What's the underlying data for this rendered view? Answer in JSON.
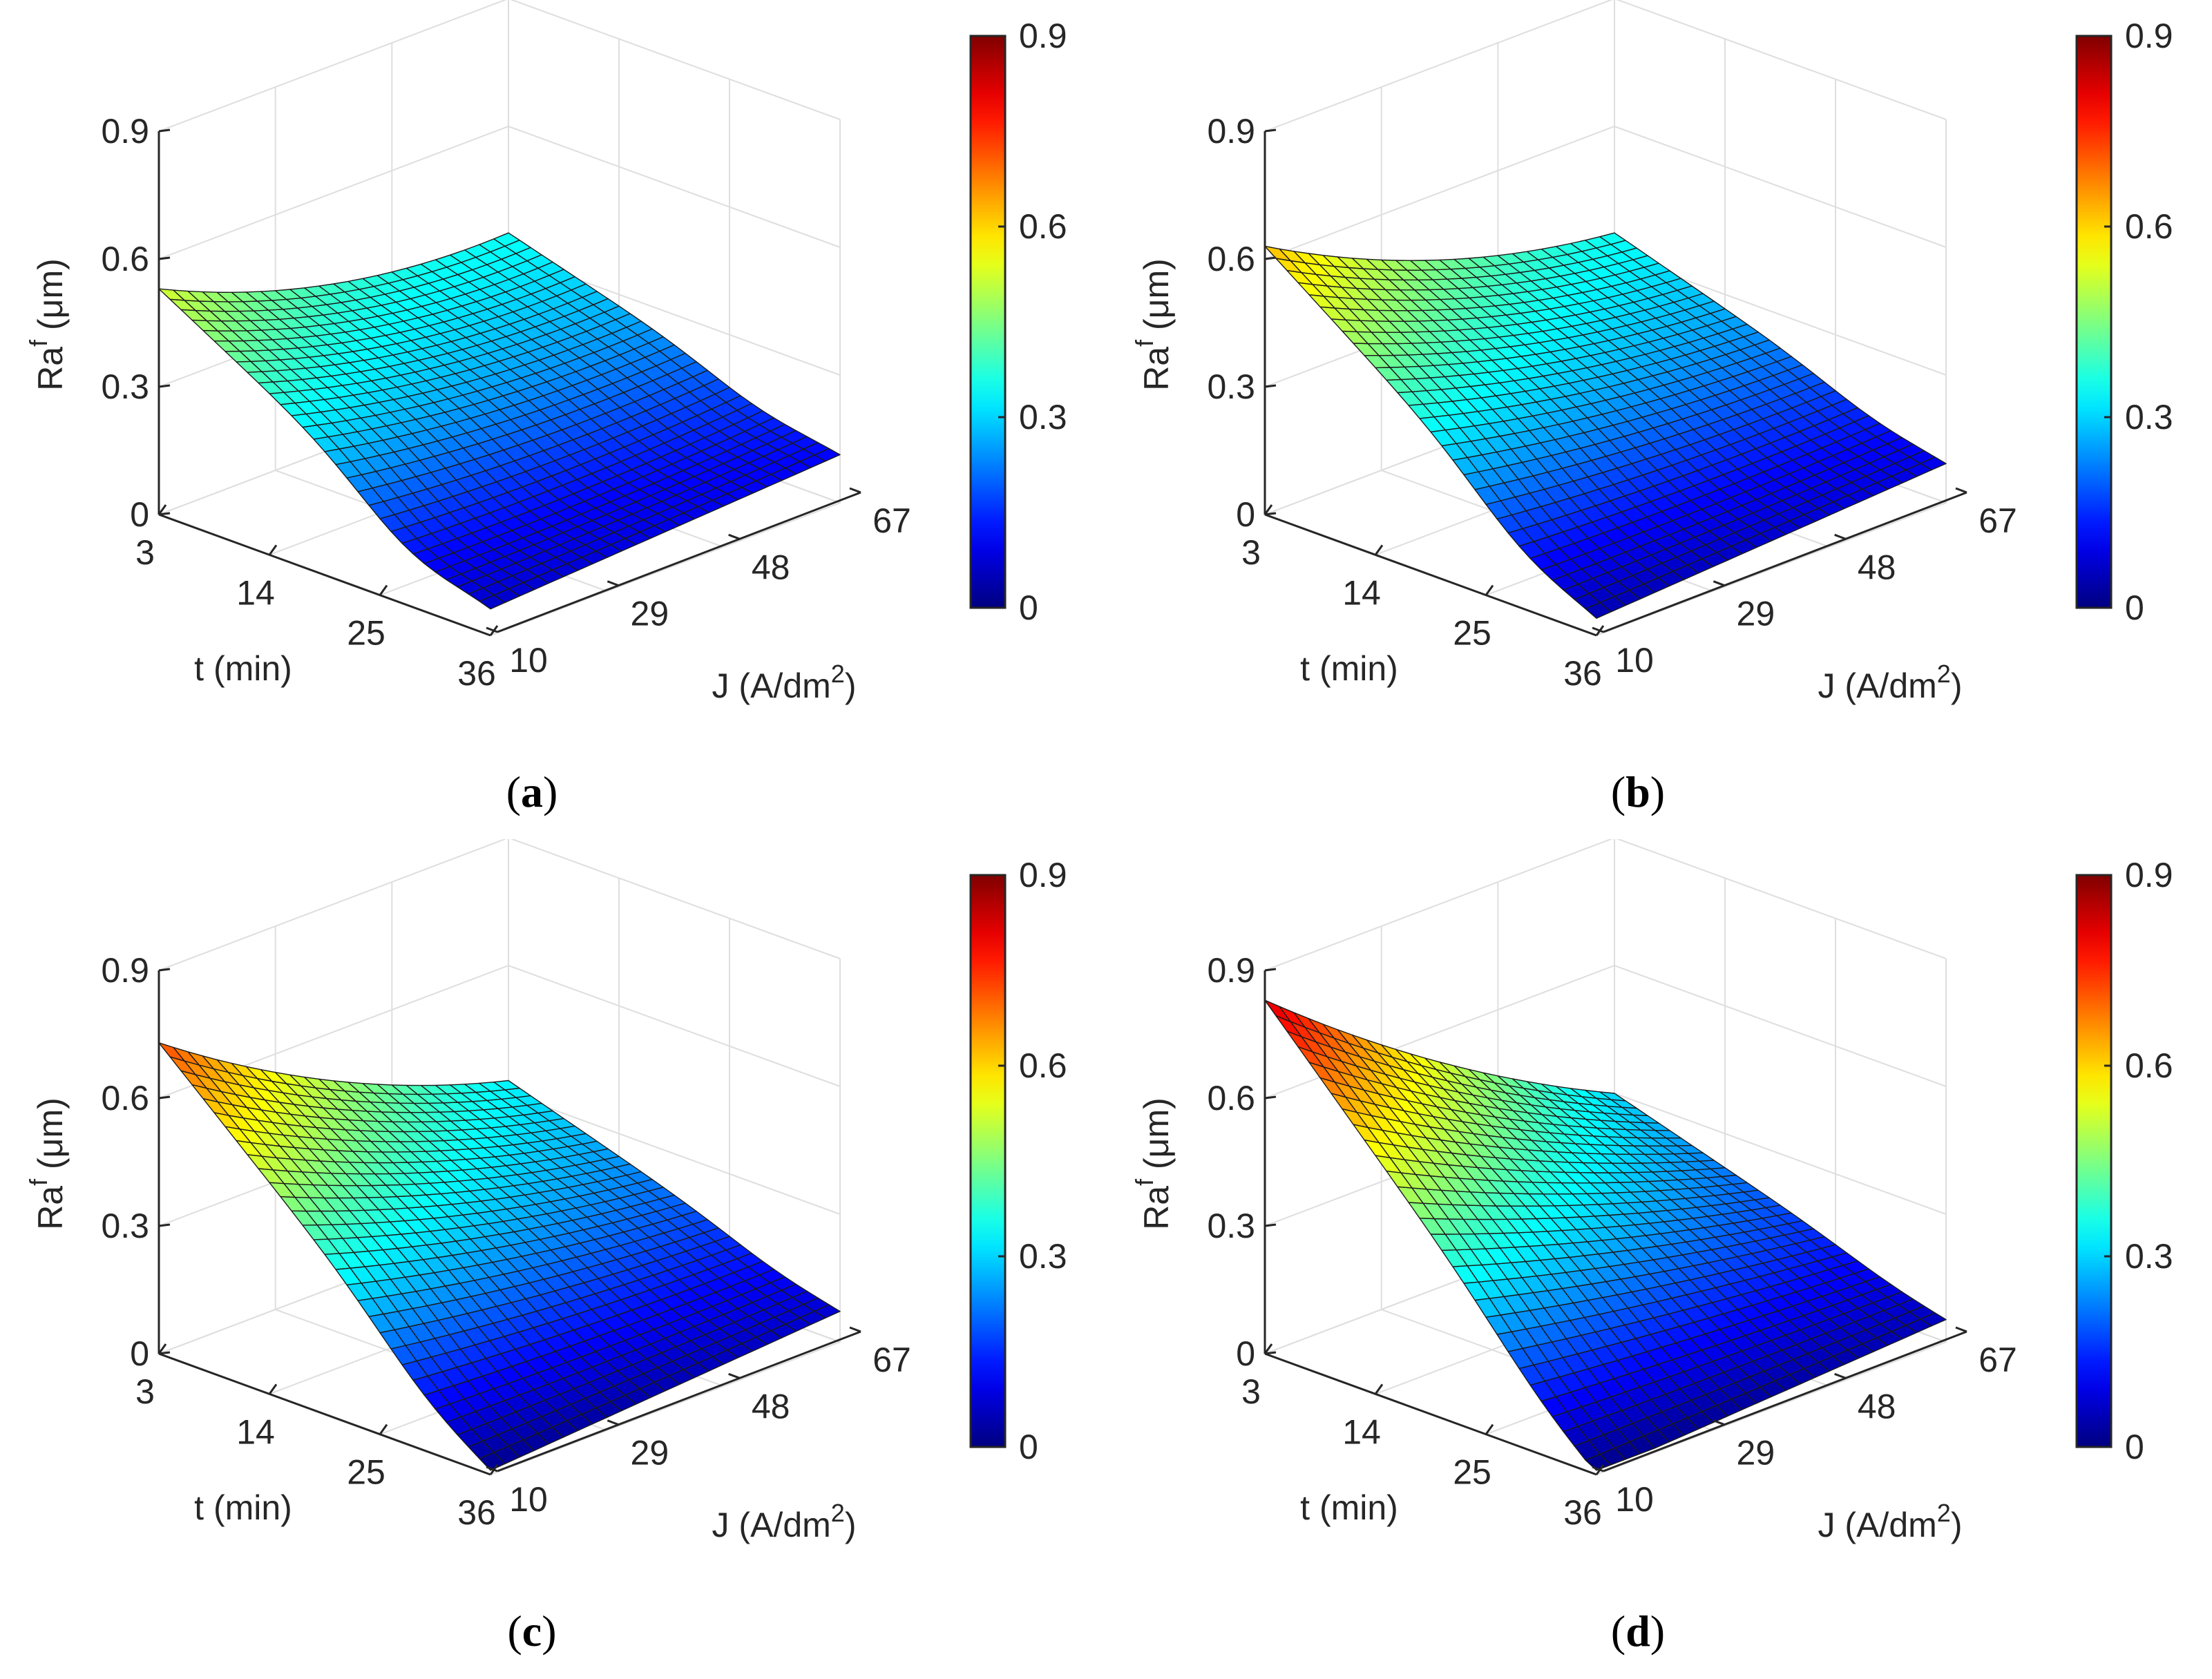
{
  "figure": {
    "description_free": true
  },
  "chart_data": [
    {
      "type": "surface3d",
      "panel_id": "a",
      "caption_letter": "a",
      "xlabel": "t (min)",
      "ylabel_base": "J (A/dm",
      "ylabel_sup": "2",
      "ylabel_close": ")",
      "zlabel_base": "Ra",
      "zlabel_sup": "f",
      "zlabel_unit": "(μm)",
      "x_ticks": [
        "3",
        "14",
        "25",
        "36"
      ],
      "y_ticks": [
        "10",
        "29",
        "48",
        "67"
      ],
      "z_ticks": [
        "0",
        "0.3",
        "0.6",
        "0.9"
      ],
      "colorbar_ticks": [
        "0",
        "0.3",
        "0.6",
        "0.9"
      ],
      "xlim": [
        3,
        36
      ],
      "ylim": [
        10,
        67
      ],
      "zlim": [
        0,
        0.9
      ],
      "clim": [
        0,
        0.9
      ],
      "corners": {
        "t3_J10": 0.53,
        "t36_J10": 0.08,
        "t3_J67": 0.35,
        "t36_J67": 0.12
      },
      "valley": {
        "t_min": 28,
        "depth": 0.06,
        "at_J": 10
      },
      "J_curvature": 0.18
    },
    {
      "type": "surface3d",
      "panel_id": "b",
      "caption_letter": "b",
      "xlabel": "t (min)",
      "ylabel_base": "J (A/dm",
      "ylabel_sup": "2",
      "ylabel_close": ")",
      "zlabel_base": "Ra",
      "zlabel_sup": "f",
      "zlabel_unit": "(μm)",
      "x_ticks": [
        "3",
        "14",
        "25",
        "36"
      ],
      "y_ticks": [
        "10",
        "29",
        "48",
        "67"
      ],
      "z_ticks": [
        "0",
        "0.3",
        "0.6",
        "0.9"
      ],
      "colorbar_ticks": [
        "0",
        "0.3",
        "0.6",
        "0.9"
      ],
      "xlim": [
        3,
        36
      ],
      "ylim": [
        10,
        67
      ],
      "zlim": [
        0,
        0.9
      ],
      "clim": [
        0,
        0.9
      ],
      "corners": {
        "t3_J10": 0.63,
        "t36_J10": 0.06,
        "t3_J67": 0.35,
        "t36_J67": 0.1
      },
      "valley": {
        "t_min": 29,
        "depth": 0.05,
        "at_J": 10
      },
      "J_curvature": 0.16
    },
    {
      "type": "surface3d",
      "panel_id": "c",
      "caption_letter": "c",
      "xlabel": "t (min)",
      "ylabel_base": "J (A/dm",
      "ylabel_sup": "2",
      "ylabel_close": ")",
      "zlabel_base": "Ra",
      "zlabel_sup": "f",
      "zlabel_unit": "(μm)",
      "x_ticks": [
        "3",
        "14",
        "25",
        "36"
      ],
      "y_ticks": [
        "10",
        "29",
        "48",
        "67"
      ],
      "z_ticks": [
        "0",
        "0.3",
        "0.6",
        "0.9"
      ],
      "colorbar_ticks": [
        "0",
        "0.3",
        "0.6",
        "0.9"
      ],
      "xlim": [
        3,
        36
      ],
      "ylim": [
        10,
        67
      ],
      "zlim": [
        0,
        0.9
      ],
      "clim": [
        0,
        0.9
      ],
      "corners": {
        "t3_J10": 0.73,
        "t36_J10": 0.03,
        "t3_J67": 0.33,
        "t36_J67": 0.08
      },
      "valley": {
        "t_min": 30,
        "depth": 0.04,
        "at_J": 10
      },
      "J_curvature": 0.15
    },
    {
      "type": "surface3d",
      "panel_id": "d",
      "caption_letter": "d",
      "xlabel": "t (min)",
      "ylabel_base": "J (A/dm",
      "ylabel_sup": "2",
      "ylabel_close": ")",
      "zlabel_base": "Ra",
      "zlabel_sup": "f",
      "zlabel_unit": "(μm)",
      "x_ticks": [
        "3",
        "14",
        "25",
        "36"
      ],
      "y_ticks": [
        "10",
        "29",
        "48",
        "67"
      ],
      "z_ticks": [
        "0",
        "0.3",
        "0.6",
        "0.9"
      ],
      "colorbar_ticks": [
        "0",
        "0.3",
        "0.6",
        "0.9"
      ],
      "xlim": [
        3,
        36
      ],
      "ylim": [
        10,
        67
      ],
      "zlim": [
        0,
        0.9
      ],
      "clim": [
        0,
        0.9
      ],
      "corners": {
        "t3_J10": 0.83,
        "t36_J10": 0.02,
        "t3_J67": 0.3,
        "t36_J67": 0.06
      },
      "valley": {
        "t_min": 31,
        "depth": 0.03,
        "at_J": 10
      },
      "J_curvature": 0.12
    }
  ],
  "colors": {
    "axis": "#262626",
    "grid": "#dedede",
    "mesh": "#1a1a1a",
    "colormap": "jet"
  }
}
